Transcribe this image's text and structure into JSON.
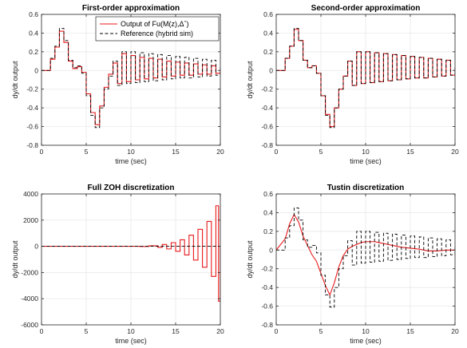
{
  "chart_data": [
    {
      "type": "line",
      "title": "First-order approximation",
      "xlabel": "time (sec)",
      "ylabel": "dy/dt  output",
      "xlim": [
        0,
        20
      ],
      "ylim": [
        -0.8,
        0.6
      ],
      "xticks": [
        "0",
        "5",
        "10",
        "15",
        "20"
      ],
      "yticks": [
        "-0.8",
        "-0.6",
        "-0.4",
        "-0.2",
        "0",
        "0.2",
        "0.4",
        "0.6"
      ],
      "grid": true,
      "legend": {
        "position": "top-right",
        "entries": [
          "Output of Fu(M(z),Δˆ)",
          "Reference (hybrid sim)"
        ]
      },
      "series": [
        {
          "name": "Output of Fu(M(z),Δˆ)",
          "color": "#e8191b",
          "style": "solid",
          "step": true,
          "x": [
            0,
            1,
            1.5,
            2,
            2.5,
            3,
            3.5,
            4,
            4.5,
            5,
            5.5,
            6,
            6.5,
            7,
            7.5,
            8,
            8.5,
            9,
            9.5,
            10,
            10.5,
            11,
            11.5,
            12,
            12.5,
            13,
            13.5,
            14,
            14.5,
            15,
            15.5,
            16,
            16.5,
            17,
            17.5,
            18,
            18.5,
            19,
            19.5,
            20
          ],
          "y": [
            0,
            0.12,
            0.25,
            0.42,
            0.3,
            0.1,
            0.02,
            0.04,
            -0.02,
            -0.25,
            -0.45,
            -0.58,
            -0.38,
            -0.18,
            -0.04,
            0.08,
            -0.14,
            0.18,
            -0.12,
            0.16,
            -0.1,
            0.14,
            -0.09,
            0.13,
            -0.08,
            0.12,
            -0.07,
            0.1,
            -0.06,
            0.09,
            -0.05,
            0.08,
            -0.05,
            0.07,
            -0.04,
            0.06,
            -0.04,
            0.05,
            -0.03,
            0.02
          ]
        },
        {
          "name": "Reference (hybrid sim)",
          "color": "#000000",
          "style": "dashed",
          "step": true,
          "x": [
            0,
            1,
            1.5,
            2,
            2.5,
            3,
            3.5,
            4,
            4.5,
            5,
            5.5,
            6,
            6.5,
            7,
            7.5,
            8,
            8.5,
            9,
            9.5,
            10,
            10.5,
            11,
            11.5,
            12,
            12.5,
            13,
            13.5,
            14,
            14.5,
            15,
            15.5,
            16,
            16.5,
            17,
            17.5,
            18,
            18.5,
            19,
            19.5,
            20
          ],
          "y": [
            0,
            0.13,
            0.26,
            0.45,
            0.32,
            0.11,
            0.03,
            0.05,
            -0.03,
            -0.27,
            -0.48,
            -0.61,
            -0.4,
            -0.2,
            -0.06,
            0.1,
            -0.16,
            0.2,
            -0.14,
            0.2,
            -0.13,
            0.19,
            -0.12,
            0.18,
            -0.11,
            0.17,
            -0.1,
            0.16,
            -0.09,
            0.15,
            -0.08,
            0.14,
            -0.08,
            0.13,
            -0.07,
            0.12,
            -0.06,
            0.11,
            -0.05,
            0.03
          ]
        }
      ]
    },
    {
      "type": "line",
      "title": "Second-order approximation",
      "xlabel": "time (sec)",
      "ylabel": "dy/dt  output",
      "xlim": [
        0,
        20
      ],
      "ylim": [
        -0.8,
        0.6
      ],
      "xticks": [
        "0",
        "5",
        "10",
        "15",
        "20"
      ],
      "yticks": [
        "-0.8",
        "-0.6",
        "-0.4",
        "-0.2",
        "0",
        "0.2",
        "0.4",
        "0.6"
      ],
      "grid": true,
      "series": [
        {
          "name": "Output of Fu(M(z),Δˆ)",
          "color": "#e8191b",
          "style": "solid",
          "step": true,
          "x": [
            0,
            1,
            1.5,
            2,
            2.5,
            3,
            3.5,
            4,
            4.5,
            5,
            5.5,
            6,
            6.5,
            7,
            7.5,
            8,
            8.5,
            9,
            9.5,
            10,
            10.5,
            11,
            11.5,
            12,
            12.5,
            13,
            13.5,
            14,
            14.5,
            15,
            15.5,
            16,
            16.5,
            17,
            17.5,
            18,
            18.5,
            19,
            19.5,
            20
          ],
          "y": [
            0,
            0.13,
            0.26,
            0.44,
            0.32,
            0.11,
            0.03,
            0.05,
            -0.03,
            -0.27,
            -0.47,
            -0.6,
            -0.4,
            -0.2,
            -0.06,
            0.1,
            -0.16,
            0.2,
            -0.14,
            0.2,
            -0.13,
            0.19,
            -0.12,
            0.18,
            -0.11,
            0.17,
            -0.1,
            0.16,
            -0.09,
            0.15,
            -0.08,
            0.14,
            -0.08,
            0.13,
            -0.07,
            0.12,
            -0.06,
            0.11,
            -0.05,
            0.03
          ]
        },
        {
          "name": "Reference (hybrid sim)",
          "color": "#000000",
          "style": "dashed",
          "step": true,
          "x": [
            0,
            1,
            1.5,
            2,
            2.5,
            3,
            3.5,
            4,
            4.5,
            5,
            5.5,
            6,
            6.5,
            7,
            7.5,
            8,
            8.5,
            9,
            9.5,
            10,
            10.5,
            11,
            11.5,
            12,
            12.5,
            13,
            13.5,
            14,
            14.5,
            15,
            15.5,
            16,
            16.5,
            17,
            17.5,
            18,
            18.5,
            19,
            19.5,
            20
          ],
          "y": [
            0,
            0.13,
            0.26,
            0.45,
            0.32,
            0.11,
            0.03,
            0.05,
            -0.03,
            -0.27,
            -0.48,
            -0.61,
            -0.4,
            -0.2,
            -0.06,
            0.1,
            -0.16,
            0.2,
            -0.14,
            0.2,
            -0.13,
            0.19,
            -0.12,
            0.18,
            -0.11,
            0.17,
            -0.1,
            0.16,
            -0.09,
            0.15,
            -0.08,
            0.14,
            -0.08,
            0.13,
            -0.07,
            0.12,
            -0.06,
            0.11,
            -0.05,
            0.03
          ]
        }
      ]
    },
    {
      "type": "line",
      "title": "Full ZOH discretization",
      "xlabel": "time (sec)",
      "ylabel": "dy/dt  output",
      "xlim": [
        0,
        20
      ],
      "ylim": [
        -6000,
        4000
      ],
      "xticks": [
        "0",
        "5",
        "10",
        "15",
        "20"
      ],
      "yticks": [
        "-6000",
        "-4000",
        "-2000",
        "0",
        "2000",
        "4000"
      ],
      "grid": true,
      "series": [
        {
          "name": "Output of Fu(M(z),Δˆ)",
          "color": "#e8191b",
          "style": "solid",
          "step": true,
          "x": [
            0,
            10,
            11,
            12,
            13,
            13.5,
            14,
            14.5,
            15,
            15.5,
            16,
            16.5,
            17,
            17.5,
            18,
            18.5,
            19,
            19.5,
            19.8,
            20
          ],
          "y": [
            0,
            5,
            -15,
            40,
            -80,
            140,
            -200,
            280,
            -380,
            500,
            -660,
            850,
            -1050,
            1300,
            -1600,
            1900,
            -2300,
            3100,
            -4200,
            0
          ]
        },
        {
          "name": "Reference (hybrid sim)",
          "color": "#000000",
          "style": "dashed",
          "step": true,
          "x": [
            0,
            20
          ],
          "y": [
            0,
            0
          ]
        }
      ]
    },
    {
      "type": "line",
      "title": "Tustin discretization",
      "xlabel": "time (sec)",
      "ylabel": "dy/dt  output",
      "xlim": [
        0,
        20
      ],
      "ylim": [
        -0.8,
        0.6
      ],
      "xticks": [
        "0",
        "5",
        "10",
        "15",
        "20"
      ],
      "yticks": [
        "-0.8",
        "-0.6",
        "-0.4",
        "-0.2",
        "0",
        "0.2",
        "0.4",
        "0.6"
      ],
      "grid": true,
      "series": [
        {
          "name": "Output of Fu(M(z),Δˆ)",
          "color": "#e8191b",
          "style": "solid",
          "step": false,
          "x": [
            0,
            1,
            1.5,
            2,
            2.5,
            3,
            3.5,
            4,
            4.5,
            5,
            5.5,
            6,
            6.5,
            7,
            7.5,
            8,
            8.5,
            9,
            9.5,
            10,
            10.5,
            11,
            11.5,
            12,
            12.5,
            13,
            13.5,
            14,
            14.5,
            15,
            15.5,
            16,
            16.5,
            17,
            17.5,
            18,
            18.5,
            19,
            19.5,
            20
          ],
          "y": [
            0,
            0.12,
            0.28,
            0.38,
            0.3,
            0.15,
            0.05,
            -0.05,
            -0.12,
            -0.25,
            -0.38,
            -0.48,
            -0.35,
            -0.18,
            -0.06,
            0.01,
            0.04,
            0.06,
            0.08,
            0.09,
            0.09,
            0.09,
            0.08,
            0.07,
            0.06,
            0.05,
            0.04,
            0.03,
            0.025,
            0.02,
            0.015,
            0.01,
            0.0,
            -0.01,
            -0.01,
            -0.01,
            -0.005,
            0.0,
            0.0,
            0.0
          ]
        },
        {
          "name": "Reference (hybrid sim)",
          "color": "#000000",
          "style": "dashed",
          "step": true,
          "x": [
            0,
            1,
            1.5,
            2,
            2.5,
            3,
            3.5,
            4,
            4.5,
            5,
            5.5,
            6,
            6.5,
            7,
            7.5,
            8,
            8.5,
            9,
            9.5,
            10,
            10.5,
            11,
            11.5,
            12,
            12.5,
            13,
            13.5,
            14,
            14.5,
            15,
            15.5,
            16,
            16.5,
            17,
            17.5,
            18,
            18.5,
            19,
            19.5,
            20
          ],
          "y": [
            0,
            0.13,
            0.26,
            0.45,
            0.32,
            0.11,
            0.03,
            0.05,
            -0.03,
            -0.27,
            -0.48,
            -0.61,
            -0.4,
            -0.2,
            -0.06,
            0.1,
            -0.16,
            0.2,
            -0.14,
            0.2,
            -0.13,
            0.19,
            -0.12,
            0.18,
            -0.11,
            0.17,
            -0.1,
            0.16,
            -0.09,
            0.15,
            -0.08,
            0.14,
            -0.08,
            0.13,
            -0.07,
            0.12,
            -0.06,
            0.11,
            -0.05,
            0.03
          ]
        }
      ]
    }
  ]
}
